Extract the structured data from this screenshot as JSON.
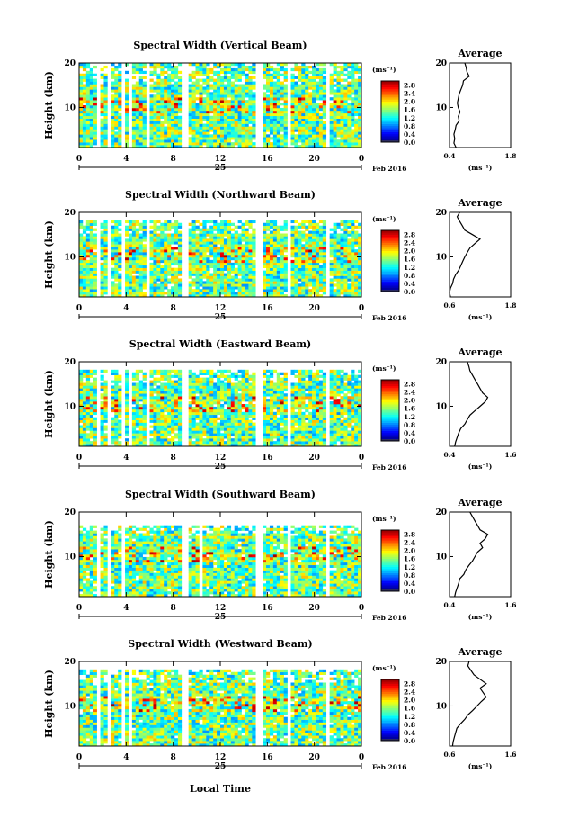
{
  "figure": {
    "xlabel": "Local Time",
    "date_label": "Feb 2016",
    "day_label": "25",
    "height_label": "Height (km)",
    "unit_label": "(ms⁻¹)",
    "average_title": "Average",
    "average_xlabel": "(ms⁻¹)"
  },
  "chart_data": [
    {
      "type": "heatmap",
      "title": "Spectral Width (Vertical Beam)",
      "x_ticks": [
        "0",
        "4",
        "8",
        "12",
        "16",
        "20",
        "0"
      ],
      "xlim": [
        0,
        24
      ],
      "y_ticks": [
        "10",
        "20"
      ],
      "ylim": [
        1,
        20
      ],
      "colorbar_ticks": [
        "0.0",
        "0.4",
        "0.8",
        "1.2",
        "1.6",
        "2.0",
        "2.4",
        "2.8"
      ],
      "colorbar_range": [
        0,
        3.0
      ],
      "gap_hours": [
        [
          1.45,
          1.8
        ],
        [
          2.4,
          2.8
        ],
        [
          3.5,
          3.8
        ],
        [
          4.3,
          4.6
        ],
        [
          5.6,
          6.0
        ],
        [
          8.7,
          9.4
        ],
        [
          15.0,
          15.5
        ],
        [
          17.7,
          18.1
        ],
        [
          21.0,
          21.4
        ]
      ],
      "top_cutoff_km": 20,
      "average": {
        "x_ticks": [
          "0.4",
          "1.8"
        ],
        "xlim": [
          0.4,
          1.8
        ],
        "y_ticks": [
          "10",
          "20"
        ],
        "heights_km": [
          1,
          2,
          3,
          4,
          5,
          6,
          7,
          8,
          9,
          10,
          11,
          12,
          13,
          14,
          15,
          16,
          17,
          18,
          19,
          20
        ],
        "values": [
          0.55,
          0.5,
          0.52,
          0.5,
          0.53,
          0.55,
          0.62,
          0.6,
          0.64,
          0.6,
          0.58,
          0.6,
          0.62,
          0.66,
          0.7,
          0.72,
          0.85,
          0.8,
          0.78,
          0.75
        ]
      }
    },
    {
      "type": "heatmap",
      "title": "Spectral Width (Northward Beam)",
      "x_ticks": [
        "0",
        "4",
        "8",
        "12",
        "16",
        "20",
        "0"
      ],
      "xlim": [
        0,
        24
      ],
      "y_ticks": [
        "10",
        "20"
      ],
      "ylim": [
        1,
        20
      ],
      "colorbar_ticks": [
        "0.0",
        "0.4",
        "0.8",
        "1.2",
        "1.6",
        "2.0",
        "2.4",
        "2.8"
      ],
      "colorbar_range": [
        0,
        3.0
      ],
      "gap_hours": [
        [
          1.45,
          1.8
        ],
        [
          2.4,
          2.8
        ],
        [
          3.5,
          3.8
        ],
        [
          5.6,
          6.0
        ],
        [
          8.7,
          9.4
        ],
        [
          15.0,
          15.5
        ],
        [
          17.7,
          18.1
        ],
        [
          21.0,
          21.4
        ]
      ],
      "top_cutoff_km": 18,
      "average": {
        "x_ticks": [
          "0.6",
          "1.8"
        ],
        "xlim": [
          0.6,
          1.8
        ],
        "y_ticks": [
          "10",
          "20"
        ],
        "heights_km": [
          1,
          2,
          3,
          4,
          5,
          6,
          7,
          8,
          9,
          10,
          11,
          12,
          13,
          14,
          15,
          16,
          17,
          18,
          19,
          20
        ],
        "values": [
          0.62,
          0.6,
          0.62,
          0.66,
          0.68,
          0.72,
          0.78,
          0.82,
          0.86,
          0.9,
          0.95,
          1.0,
          1.1,
          1.2,
          1.05,
          0.9,
          0.85,
          0.8,
          0.75,
          0.8
        ]
      }
    },
    {
      "type": "heatmap",
      "title": "Spectral Width (Eastward Beam)",
      "x_ticks": [
        "0",
        "4",
        "8",
        "12",
        "16",
        "20",
        "0"
      ],
      "xlim": [
        0,
        24
      ],
      "y_ticks": [
        "10",
        "20"
      ],
      "ylim": [
        1,
        20
      ],
      "colorbar_ticks": [
        "0.0",
        "0.4",
        "0.8",
        "1.2",
        "1.6",
        "2.0",
        "2.4",
        "2.8"
      ],
      "colorbar_range": [
        0,
        3.0
      ],
      "gap_hours": [
        [
          1.45,
          1.8
        ],
        [
          2.4,
          2.8
        ],
        [
          3.5,
          3.8
        ],
        [
          4.3,
          4.6
        ],
        [
          5.6,
          6.0
        ],
        [
          8.7,
          9.4
        ],
        [
          15.0,
          15.5
        ],
        [
          17.7,
          18.1
        ],
        [
          21.0,
          21.4
        ]
      ],
      "top_cutoff_km": 18,
      "average": {
        "x_ticks": [
          "0.4",
          "1.6"
        ],
        "xlim": [
          0.4,
          1.6
        ],
        "y_ticks": [
          "10",
          "20"
        ],
        "heights_km": [
          1,
          2,
          3,
          4,
          5,
          6,
          7,
          8,
          9,
          10,
          11,
          12,
          13,
          14,
          15,
          16,
          17,
          18,
          19,
          20
        ],
        "values": [
          0.5,
          0.52,
          0.55,
          0.58,
          0.62,
          0.7,
          0.75,
          0.8,
          0.9,
          1.0,
          1.1,
          1.15,
          1.05,
          1.0,
          0.95,
          0.9,
          0.85,
          0.8,
          0.78,
          0.75
        ]
      }
    },
    {
      "type": "heatmap",
      "title": "Spectral Width (Southward Beam)",
      "x_ticks": [
        "0",
        "4",
        "8",
        "12",
        "16",
        "20",
        "0"
      ],
      "xlim": [
        0,
        24
      ],
      "y_ticks": [
        "10",
        "20"
      ],
      "ylim": [
        1,
        20
      ],
      "colorbar_ticks": [
        "0.0",
        "0.4",
        "0.8",
        "1.2",
        "1.6",
        "2.0",
        "2.4",
        "2.8"
      ],
      "colorbar_range": [
        0,
        3.0
      ],
      "gap_hours": [
        [
          1.45,
          1.8
        ],
        [
          2.4,
          2.8
        ],
        [
          3.5,
          3.8
        ],
        [
          8.7,
          9.4
        ],
        [
          10.1,
          10.4
        ],
        [
          15.0,
          15.5
        ],
        [
          17.7,
          18.1
        ],
        [
          21.0,
          21.4
        ]
      ],
      "top_cutoff_km": 17,
      "average": {
        "x_ticks": [
          "0.4",
          "1.6"
        ],
        "xlim": [
          0.4,
          1.6
        ],
        "y_ticks": [
          "10",
          "20"
        ],
        "heights_km": [
          1,
          2,
          3,
          4,
          5,
          6,
          7,
          8,
          9,
          10,
          11,
          12,
          13,
          14,
          15,
          16,
          17,
          18,
          19,
          20
        ],
        "values": [
          0.5,
          0.52,
          0.55,
          0.58,
          0.6,
          0.68,
          0.72,
          0.78,
          0.85,
          0.9,
          0.95,
          1.05,
          1.0,
          1.1,
          1.15,
          1.0,
          0.95,
          0.9,
          0.85,
          0.8
        ]
      }
    },
    {
      "type": "heatmap",
      "title": "Spectral Width (Westward Beam)",
      "x_ticks": [
        "0",
        "4",
        "8",
        "12",
        "16",
        "20",
        "0"
      ],
      "xlim": [
        0,
        24
      ],
      "y_ticks": [
        "10",
        "20"
      ],
      "ylim": [
        1,
        20
      ],
      "colorbar_ticks": [
        "0.0",
        "0.4",
        "0.8",
        "1.2",
        "1.6",
        "2.0",
        "2.4",
        "2.8"
      ],
      "colorbar_range": [
        0,
        3.0
      ],
      "gap_hours": [
        [
          1.45,
          1.8
        ],
        [
          2.4,
          2.8
        ],
        [
          3.5,
          3.8
        ],
        [
          4.3,
          4.6
        ],
        [
          8.7,
          9.4
        ],
        [
          15.0,
          15.5
        ],
        [
          17.7,
          18.1
        ],
        [
          21.0,
          21.4
        ]
      ],
      "top_cutoff_km": 18,
      "average": {
        "x_ticks": [
          "0.6",
          "1.6"
        ],
        "xlim": [
          0.6,
          1.6
        ],
        "y_ticks": [
          "10",
          "20"
        ],
        "heights_km": [
          1,
          2,
          3,
          4,
          5,
          6,
          7,
          8,
          9,
          10,
          11,
          12,
          13,
          14,
          15,
          16,
          17,
          18,
          19,
          20
        ],
        "values": [
          0.65,
          0.66,
          0.68,
          0.7,
          0.72,
          0.78,
          0.85,
          0.9,
          0.98,
          1.05,
          1.12,
          1.2,
          1.15,
          1.1,
          1.2,
          1.1,
          1.0,
          0.95,
          0.9,
          0.92
        ]
      }
    }
  ]
}
